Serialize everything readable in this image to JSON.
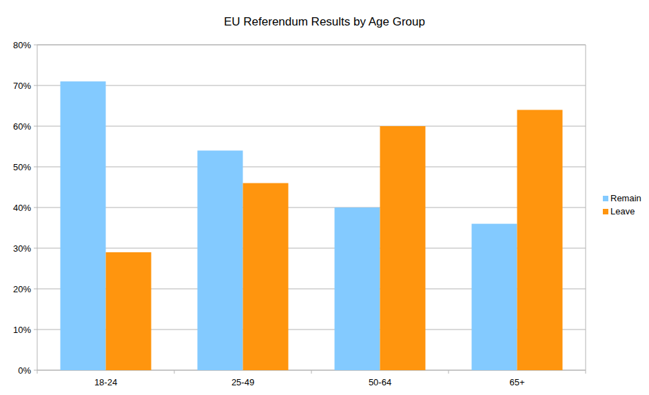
{
  "chart_data": {
    "type": "bar",
    "title": "EU Referendum Results by Age Group",
    "categories": [
      "18-24",
      "25-49",
      "50-64",
      "65+"
    ],
    "series": [
      {
        "name": "Remain",
        "color": "#83caff",
        "values": [
          71,
          54,
          40,
          36
        ]
      },
      {
        "name": "Leave",
        "color": "#ff950e",
        "values": [
          29,
          46,
          60,
          64
        ]
      }
    ],
    "ylim": [
      0,
      80
    ],
    "yticks": [
      {
        "value": 0,
        "label": "0%"
      },
      {
        "value": 10,
        "label": "10%"
      },
      {
        "value": 20,
        "label": "20%"
      },
      {
        "value": 30,
        "label": "30%"
      },
      {
        "value": 40,
        "label": "40%"
      },
      {
        "value": 50,
        "label": "50%"
      },
      {
        "value": 60,
        "label": "60%"
      },
      {
        "value": 70,
        "label": "70%"
      },
      {
        "value": 80,
        "label": "80%"
      }
    ],
    "grid": true,
    "legend": "right"
  }
}
